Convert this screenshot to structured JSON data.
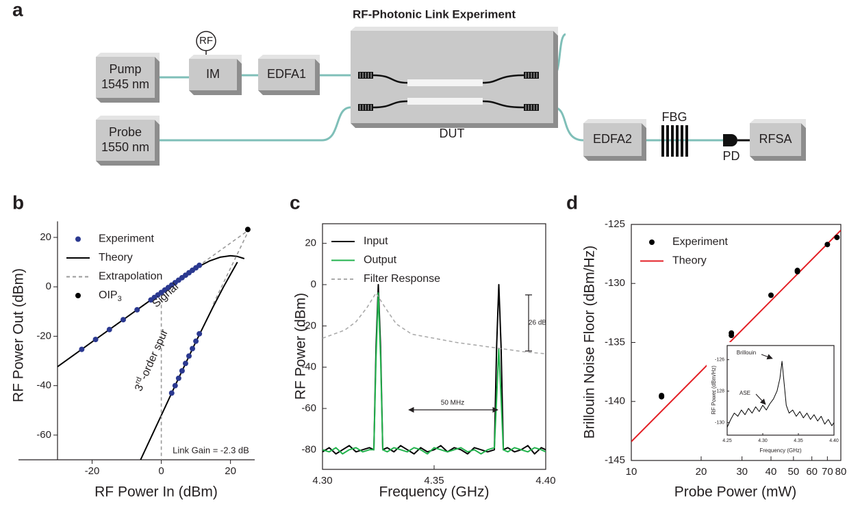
{
  "diagram": {
    "panel_label": "a",
    "title": "RF-Photonic Link Experiment",
    "nodes": [
      {
        "lines": [
          "Pump",
          "1545 nm"
        ]
      },
      {
        "lines": [
          "Probe",
          "1550 nm"
        ]
      },
      {
        "lines": [
          "IM"
        ]
      },
      {
        "lines": [
          "EDFA1"
        ]
      },
      {
        "lines": [
          "EDFA2"
        ]
      },
      {
        "lines": [
          "RFSA"
        ]
      }
    ],
    "labels": [
      "RF",
      "DUT",
      "FBG",
      "PD"
    ]
  },
  "chart_data": [
    {
      "panel_label": "b",
      "type": "line",
      "xlabel": "RF Power In (dBm)",
      "ylabel": "RF Power Out (dBm)",
      "xlim": [
        -30,
        27
      ],
      "ylim": [
        -70,
        26.5
      ],
      "xticks": [
        -20,
        0,
        20
      ],
      "yticks": [
        -60,
        -40,
        -20,
        0,
        20
      ],
      "legend": "upper left",
      "series": [
        {
          "name": "Experiment",
          "mode": "scatter",
          "color": "#2b3990",
          "x": [
            -23,
            -19,
            -15,
            -11,
            -7,
            -3,
            -2,
            -1,
            0,
            1,
            2,
            3,
            4,
            5,
            6,
            7,
            8,
            9,
            10,
            11,
            3,
            4,
            5,
            6,
            7,
            8,
            9,
            10,
            11
          ],
          "values": [
            -25.3,
            -21.3,
            -17.3,
            -13.3,
            -9.3,
            -5.3,
            -4.3,
            -3.3,
            -2.3,
            -1.3,
            -0.3,
            0.7,
            1.7,
            2.7,
            3.7,
            4.7,
            5.7,
            6.7,
            7.7,
            8.7,
            -43,
            -40,
            -37,
            -34,
            -31,
            -28,
            -25,
            -22,
            -19
          ]
        },
        {
          "name": "Theory",
          "mode": "line",
          "color": "#000000",
          "x": [
            -30,
            -20,
            -10,
            0,
            10,
            14,
            17,
            20,
            22,
            24,
            null,
            -6,
            0,
            5,
            10,
            15,
            18,
            20,
            22
          ],
          "values": [
            -32.3,
            -22.3,
            -12.3,
            -2.3,
            7.6,
            10.5,
            12,
            12.6,
            12.3,
            11.4,
            null,
            -70,
            -52,
            -37,
            -22.2,
            -8,
            0,
            5,
            10
          ]
        },
        {
          "name": "Extrapolation",
          "mode": "line",
          "dash": true,
          "color": "#999999",
          "x": [
            12,
            25.5,
            null,
            15,
            25.5,
            null,
            0,
            0
          ],
          "values": [
            9.7,
            23.2,
            null,
            -7,
            23.5,
            null,
            -2.3,
            -70
          ]
        },
        {
          "name": "OIP",
          "name_sub": "3",
          "mode": "scatter",
          "color": "#000000",
          "x": [
            25
          ],
          "values": [
            23.2
          ]
        }
      ],
      "annotations": [
        "Signal",
        "Link Gain = -2.3 dB"
      ],
      "spur_label": {
        "base": "3",
        "sup": "rd",
        "rest": "-order spur"
      }
    },
    {
      "panel_label": "c",
      "type": "line",
      "xlabel": "Frequency (GHz)",
      "ylabel": "RF Power (dBm)",
      "xlim": [
        4.3,
        4.4
      ],
      "ylim": [
        -89.5,
        29.5
      ],
      "xticks": [
        {
          "value": 4.3,
          "label": "4.30"
        },
        4.35,
        {
          "value": 4.4,
          "label": "4.40"
        }
      ],
      "yticks": [
        -80,
        -60,
        -40,
        -20,
        0,
        20
      ],
      "box": true,
      "legend": "upper left",
      "series": [
        {
          "name": "Input",
          "mode": "line",
          "color": "#000000",
          "x": [
            4.3,
            4.303,
            4.306,
            4.309,
            4.312,
            4.315,
            4.318,
            4.321,
            4.323,
            4.324,
            4.325,
            4.326,
            4.327,
            4.329,
            4.332,
            4.335,
            4.338,
            4.341,
            4.344,
            4.347,
            4.35,
            4.353,
            4.356,
            4.359,
            4.362,
            4.365,
            4.368,
            4.371,
            4.374,
            4.377,
            4.378,
            4.379,
            4.38,
            4.381,
            4.383,
            4.386,
            4.389,
            4.392,
            4.395,
            4.398,
            4.4
          ],
          "values": [
            -81,
            -79,
            -82,
            -80,
            -78,
            -81,
            -80,
            -79,
            -80,
            -30,
            0,
            -30,
            -80,
            -79,
            -81,
            -78,
            -80,
            -82,
            -79,
            -81,
            -80,
            -78,
            -81,
            -79,
            -80,
            -82,
            -79,
            -80,
            -81,
            -80,
            -30,
            0,
            -30,
            -80,
            -79,
            -81,
            -80,
            -78,
            -82,
            -79,
            -80
          ]
        },
        {
          "name": "Output",
          "mode": "line",
          "color": "#22b24c",
          "x": [
            4.3,
            4.303,
            4.306,
            4.309,
            4.312,
            4.315,
            4.318,
            4.321,
            4.323,
            4.324,
            4.325,
            4.326,
            4.327,
            4.329,
            4.332,
            4.335,
            4.338,
            4.341,
            4.344,
            4.347,
            4.35,
            4.353,
            4.356,
            4.359,
            4.362,
            4.365,
            4.368,
            4.371,
            4.374,
            4.377,
            4.378,
            4.379,
            4.38,
            4.381,
            4.383,
            4.386,
            4.389,
            4.392,
            4.395,
            4.398,
            4.4
          ],
          "values": [
            -80,
            -81,
            -79,
            -82,
            -80,
            -79,
            -81,
            -80,
            -80,
            -35,
            -4,
            -35,
            -80,
            -81,
            -79,
            -80,
            -81,
            -79,
            -80,
            -82,
            -79,
            -80,
            -81,
            -80,
            -79,
            -81,
            -80,
            -82,
            -80,
            -79,
            -55,
            -31,
            -55,
            -80,
            -81,
            -79,
            -80,
            -81,
            -79,
            -80,
            -81
          ]
        },
        {
          "name": "Filter Response",
          "mode": "line",
          "dash": true,
          "color": "#aaaaaa",
          "x": [
            4.3,
            4.31,
            4.315,
            4.32,
            4.324,
            4.328,
            4.333,
            4.34,
            4.35,
            4.36,
            4.37,
            4.38,
            4.39,
            4.4
          ],
          "values": [
            -26,
            -22,
            -18,
            -11,
            -4,
            -11,
            -19,
            -24,
            -26,
            -28,
            -29.5,
            -31,
            -32.5,
            -33.5
          ]
        }
      ],
      "annotations": [
        "50 MHz",
        "26 dB"
      ]
    },
    {
      "panel_label": "d",
      "type": "scatter",
      "xscale": "log",
      "xlabel": "Probe Power (mW)",
      "ylabel": "Brillouin Noise Floor (dBm/Hz)",
      "xlim": [
        10,
        80
      ],
      "ylim": [
        -145,
        -125
      ],
      "xticks": [
        10,
        20,
        30,
        40,
        50,
        60,
        70,
        80
      ],
      "yticks": [
        -145,
        -140,
        -135,
        -130,
        -125
      ],
      "box": true,
      "legend": "upper left",
      "series": [
        {
          "name": "Experiment",
          "mode": "scatter",
          "color": "#000000",
          "x": [
            13.5,
            13.5,
            27,
            27,
            40,
            52,
            52,
            70,
            77
          ],
          "values": [
            -139.6,
            -139.5,
            -134.4,
            -134.2,
            -131,
            -129,
            -128.9,
            -126.7,
            -126.1
          ]
        },
        {
          "name": "Theory",
          "mode": "line",
          "color": "#e31e24",
          "x": [
            10,
            80
          ],
          "values": [
            -143.4,
            -125.5
          ]
        }
      ]
    },
    {
      "type": "line",
      "xlabel": "Frequency (GHz)",
      "ylabel": "RF Power (dBm/Hz)",
      "xlim": [
        4.25,
        4.4
      ],
      "ylim": [
        -130.8,
        -125.1
      ],
      "xticks": [
        4.25,
        {
          "value": 4.3,
          "label": "4.30"
        },
        4.35,
        {
          "value": 4.4,
          "label": "4.40"
        }
      ],
      "yticks": [
        -126,
        -128,
        -130
      ],
      "box": true,
      "series": [
        {
          "mode": "line",
          "color": "#000000",
          "x": [
            4.25,
            4.255,
            4.26,
            4.265,
            4.27,
            4.275,
            4.28,
            4.285,
            4.29,
            4.295,
            4.3,
            4.305,
            4.31,
            4.315,
            4.32,
            4.324,
            4.327,
            4.33,
            4.333,
            4.337,
            4.342,
            4.347,
            4.352,
            4.357,
            4.362,
            4.367,
            4.372,
            4.377,
            4.382,
            4.387,
            4.392,
            4.397,
            4.4
          ],
          "values": [
            -130.3,
            -129.8,
            -129.4,
            -129.6,
            -129.2,
            -129.5,
            -129.1,
            -129.4,
            -129,
            -129.3,
            -128.9,
            -129.2,
            -128.8,
            -128.5,
            -128,
            -127.2,
            -126.1,
            -127.5,
            -128.9,
            -129.4,
            -129.2,
            -129.6,
            -129.3,
            -129.7,
            -129.4,
            -129.8,
            -129.5,
            -129.9,
            -129.6,
            -130.1,
            -129.8,
            -130.2,
            -130
          ]
        }
      ],
      "annotations": [
        "Brillouin",
        "ASE"
      ]
    }
  ]
}
